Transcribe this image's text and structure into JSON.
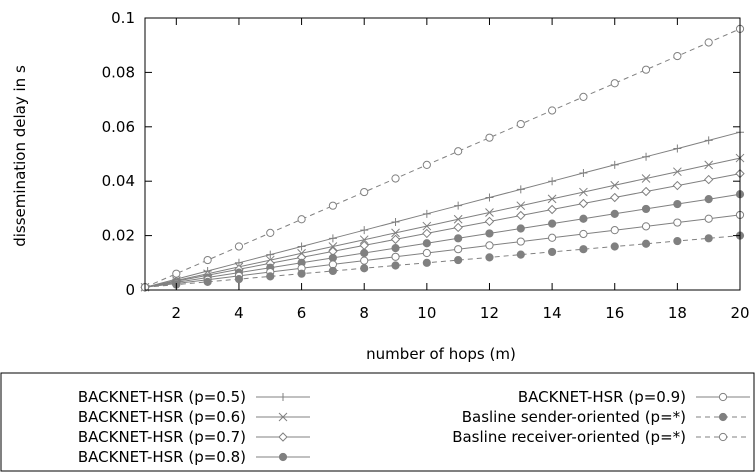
{
  "chart_data": {
    "type": "line",
    "title": "",
    "xlabel": "number of hops (m)",
    "ylabel": "dissemination delay in s",
    "xlim": [
      1,
      20
    ],
    "ylim": [
      0,
      0.1
    ],
    "x_ticks": [
      2,
      4,
      6,
      8,
      10,
      12,
      14,
      16,
      18,
      20
    ],
    "y_ticks": [
      0,
      0.02,
      0.04,
      0.06,
      0.08,
      0.1
    ],
    "x_tick_labels": [
      "2",
      "4",
      "6",
      "8",
      "10",
      "12",
      "14",
      "16",
      "18",
      "20"
    ],
    "y_tick_labels": [
      "0",
      "0.02",
      "0.04",
      "0.06",
      "0.08",
      "0.1"
    ],
    "grid": false,
    "legend_position": "below",
    "x": [
      1,
      2,
      3,
      4,
      5,
      6,
      7,
      8,
      9,
      10,
      11,
      12,
      13,
      14,
      15,
      16,
      17,
      18,
      19,
      20
    ],
    "series": [
      {
        "name": "BACKNET-HSR (p=0.5)",
        "marker": "plus",
        "dash": "solid",
        "values": [
          0.001,
          0.004,
          0.007,
          0.01,
          0.013,
          0.016,
          0.019,
          0.022,
          0.025,
          0.028,
          0.031,
          0.034,
          0.037,
          0.04,
          0.043,
          0.046,
          0.049,
          0.052,
          0.055,
          0.058
        ]
      },
      {
        "name": "BACKNET-HSR (p=0.6)",
        "marker": "cross",
        "dash": "solid",
        "values": [
          0.001,
          0.0035,
          0.006,
          0.0085,
          0.011,
          0.0135,
          0.016,
          0.0185,
          0.021,
          0.0235,
          0.026,
          0.0285,
          0.031,
          0.0335,
          0.036,
          0.0385,
          0.041,
          0.0435,
          0.046,
          0.0485
        ]
      },
      {
        "name": "BACKNET-HSR (p=0.7)",
        "marker": "diamond",
        "dash": "solid",
        "values": [
          0.001,
          0.0032,
          0.0054,
          0.0076,
          0.0098,
          0.012,
          0.0142,
          0.0164,
          0.0186,
          0.0208,
          0.023,
          0.0252,
          0.0274,
          0.0296,
          0.0318,
          0.034,
          0.0362,
          0.0384,
          0.0406,
          0.0428
        ]
      },
      {
        "name": "BACKNET-HSR (p=0.8)",
        "marker": "filled-circle",
        "dash": "solid",
        "values": [
          0.001,
          0.0028,
          0.0046,
          0.0064,
          0.0082,
          0.01,
          0.0118,
          0.0136,
          0.0154,
          0.0172,
          0.019,
          0.0208,
          0.0226,
          0.0244,
          0.0262,
          0.028,
          0.0298,
          0.0316,
          0.0334,
          0.0352
        ]
      },
      {
        "name": "BACKNET-HSR (p=0.9)",
        "marker": "open-circle",
        "dash": "solid",
        "values": [
          0.001,
          0.0024,
          0.0038,
          0.0052,
          0.0066,
          0.008,
          0.0094,
          0.0108,
          0.0122,
          0.0136,
          0.015,
          0.0164,
          0.0178,
          0.0192,
          0.0206,
          0.022,
          0.0234,
          0.0248,
          0.0262,
          0.0276
        ]
      },
      {
        "name": "Basline sender-oriented (p=*)",
        "marker": "filled-circle",
        "dash": "dashed",
        "values": [
          0.001,
          0.002,
          0.003,
          0.004,
          0.005,
          0.006,
          0.007,
          0.008,
          0.009,
          0.01,
          0.011,
          0.012,
          0.013,
          0.014,
          0.015,
          0.016,
          0.017,
          0.018,
          0.019,
          0.02
        ]
      },
      {
        "name": "Basline receiver-oriented (p=*)",
        "marker": "open-circle",
        "dash": "dashed",
        "values": [
          0.001,
          0.006,
          0.011,
          0.016,
          0.021,
          0.026,
          0.031,
          0.036,
          0.041,
          0.046,
          0.051,
          0.056,
          0.061,
          0.066,
          0.071,
          0.076,
          0.081,
          0.086,
          0.091,
          0.096
        ]
      }
    ]
  },
  "colors": {
    "series_line": "#808080",
    "series_marker": "#808080",
    "axes": "#000000"
  }
}
